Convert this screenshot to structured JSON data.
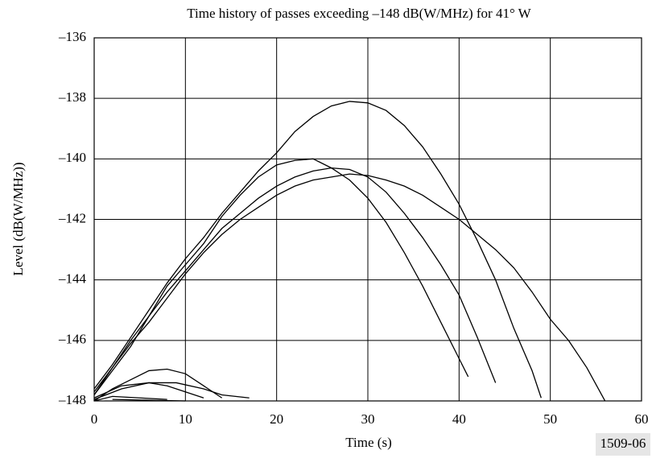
{
  "chart_data": {
    "type": "line",
    "title": "Time history of passes exceeding –148 dB(W/MHz) for 41° W",
    "x_label": "Time (s)",
    "y_label": "Level (dB(W/MHz))",
    "annotation": "1509-06",
    "xlim": [
      0,
      60
    ],
    "xticks": [
      0,
      10,
      20,
      30,
      40,
      50,
      60
    ],
    "ylim": [
      -148,
      -136
    ],
    "yticks": [
      {
        "value": -148,
        "label": "–148"
      },
      {
        "value": -146,
        "label": "–146"
      },
      {
        "value": -144,
        "label": "–144"
      },
      {
        "value": -142,
        "label": "–142"
      },
      {
        "value": -140,
        "label": "–140"
      },
      {
        "value": -138,
        "label": "–138"
      },
      {
        "value": -136,
        "label": "–136"
      }
    ],
    "grid": true,
    "series": [
      {
        "color": "#000000",
        "x": [
          0,
          2,
          4,
          6,
          8,
          10,
          12,
          14,
          16,
          18,
          20,
          22,
          24,
          26,
          28,
          30,
          32,
          34,
          36,
          38,
          40,
          42,
          44,
          46,
          48,
          49
        ],
        "values": [
          -147.6,
          -146.8,
          -145.9,
          -145.0,
          -144.1,
          -143.3,
          -142.6,
          -141.8,
          -141.1,
          -140.4,
          -139.8,
          -139.1,
          -138.6,
          -138.25,
          -138.1,
          -138.15,
          -138.4,
          -138.9,
          -139.6,
          -140.5,
          -141.5,
          -142.7,
          -144.0,
          -145.6,
          -147.0,
          -147.9
        ]
      },
      {
        "color": "#000000",
        "x": [
          0,
          2,
          4,
          6,
          8,
          10,
          12,
          14,
          16,
          18,
          20,
          22,
          24,
          26,
          28,
          30,
          32,
          34,
          36,
          38,
          40,
          41
        ],
        "values": [
          -147.8,
          -147.0,
          -146.2,
          -145.2,
          -144.2,
          -143.5,
          -142.8,
          -141.9,
          -141.2,
          -140.6,
          -140.2,
          -140.05,
          -140.0,
          -140.3,
          -140.7,
          -141.3,
          -142.1,
          -143.1,
          -144.2,
          -145.4,
          -146.6,
          -147.2
        ]
      },
      {
        "color": "#000000",
        "x": [
          0,
          2,
          4,
          6,
          8,
          10,
          12,
          14,
          16,
          18,
          20,
          22,
          24,
          26,
          28,
          30,
          32,
          34,
          36,
          38,
          40,
          42,
          44
        ],
        "values": [
          -147.7,
          -146.9,
          -146.0,
          -145.2,
          -144.4,
          -143.7,
          -143.0,
          -142.3,
          -141.8,
          -141.3,
          -140.9,
          -140.6,
          -140.4,
          -140.3,
          -140.35,
          -140.6,
          -141.1,
          -141.8,
          -142.6,
          -143.5,
          -144.5,
          -145.9,
          -147.4
        ]
      },
      {
        "color": "#000000",
        "x": [
          0,
          2,
          4,
          6,
          8,
          10,
          12,
          14,
          16,
          18,
          20,
          22,
          24,
          26,
          28,
          30,
          32,
          34,
          36,
          38,
          40,
          42,
          44,
          46,
          48,
          50,
          52,
          54,
          56
        ],
        "values": [
          -147.8,
          -146.9,
          -146.1,
          -145.4,
          -144.6,
          -143.8,
          -143.1,
          -142.5,
          -142.0,
          -141.6,
          -141.2,
          -140.9,
          -140.7,
          -140.6,
          -140.5,
          -140.55,
          -140.7,
          -140.9,
          -141.2,
          -141.6,
          -142.0,
          -142.5,
          -143.0,
          -143.6,
          -144.4,
          -145.3,
          -146.0,
          -146.9,
          -148.0
        ]
      },
      {
        "color": "#000000",
        "x": [
          0,
          2,
          4,
          6,
          8,
          10,
          12,
          14
        ],
        "values": [
          -148.0,
          -147.6,
          -147.3,
          -147.0,
          -146.95,
          -147.1,
          -147.5,
          -147.9
        ]
      },
      {
        "color": "#000000",
        "x": [
          0,
          3,
          6,
          9,
          12,
          14,
          17
        ],
        "values": [
          -147.9,
          -147.5,
          -147.4,
          -147.4,
          -147.6,
          -147.8,
          -147.9
        ]
      },
      {
        "color": "#000000",
        "x": [
          0,
          3,
          6,
          8,
          10,
          12
        ],
        "values": [
          -147.95,
          -147.6,
          -147.4,
          -147.5,
          -147.7,
          -147.9
        ]
      },
      {
        "color": "#000000",
        "x": [
          0,
          2,
          5,
          8
        ],
        "values": [
          -148.0,
          -147.85,
          -147.9,
          -147.95
        ]
      },
      {
        "color": "#000000",
        "x": [
          2,
          10
        ],
        "values": [
          -147.95,
          -148.0
        ]
      }
    ]
  }
}
